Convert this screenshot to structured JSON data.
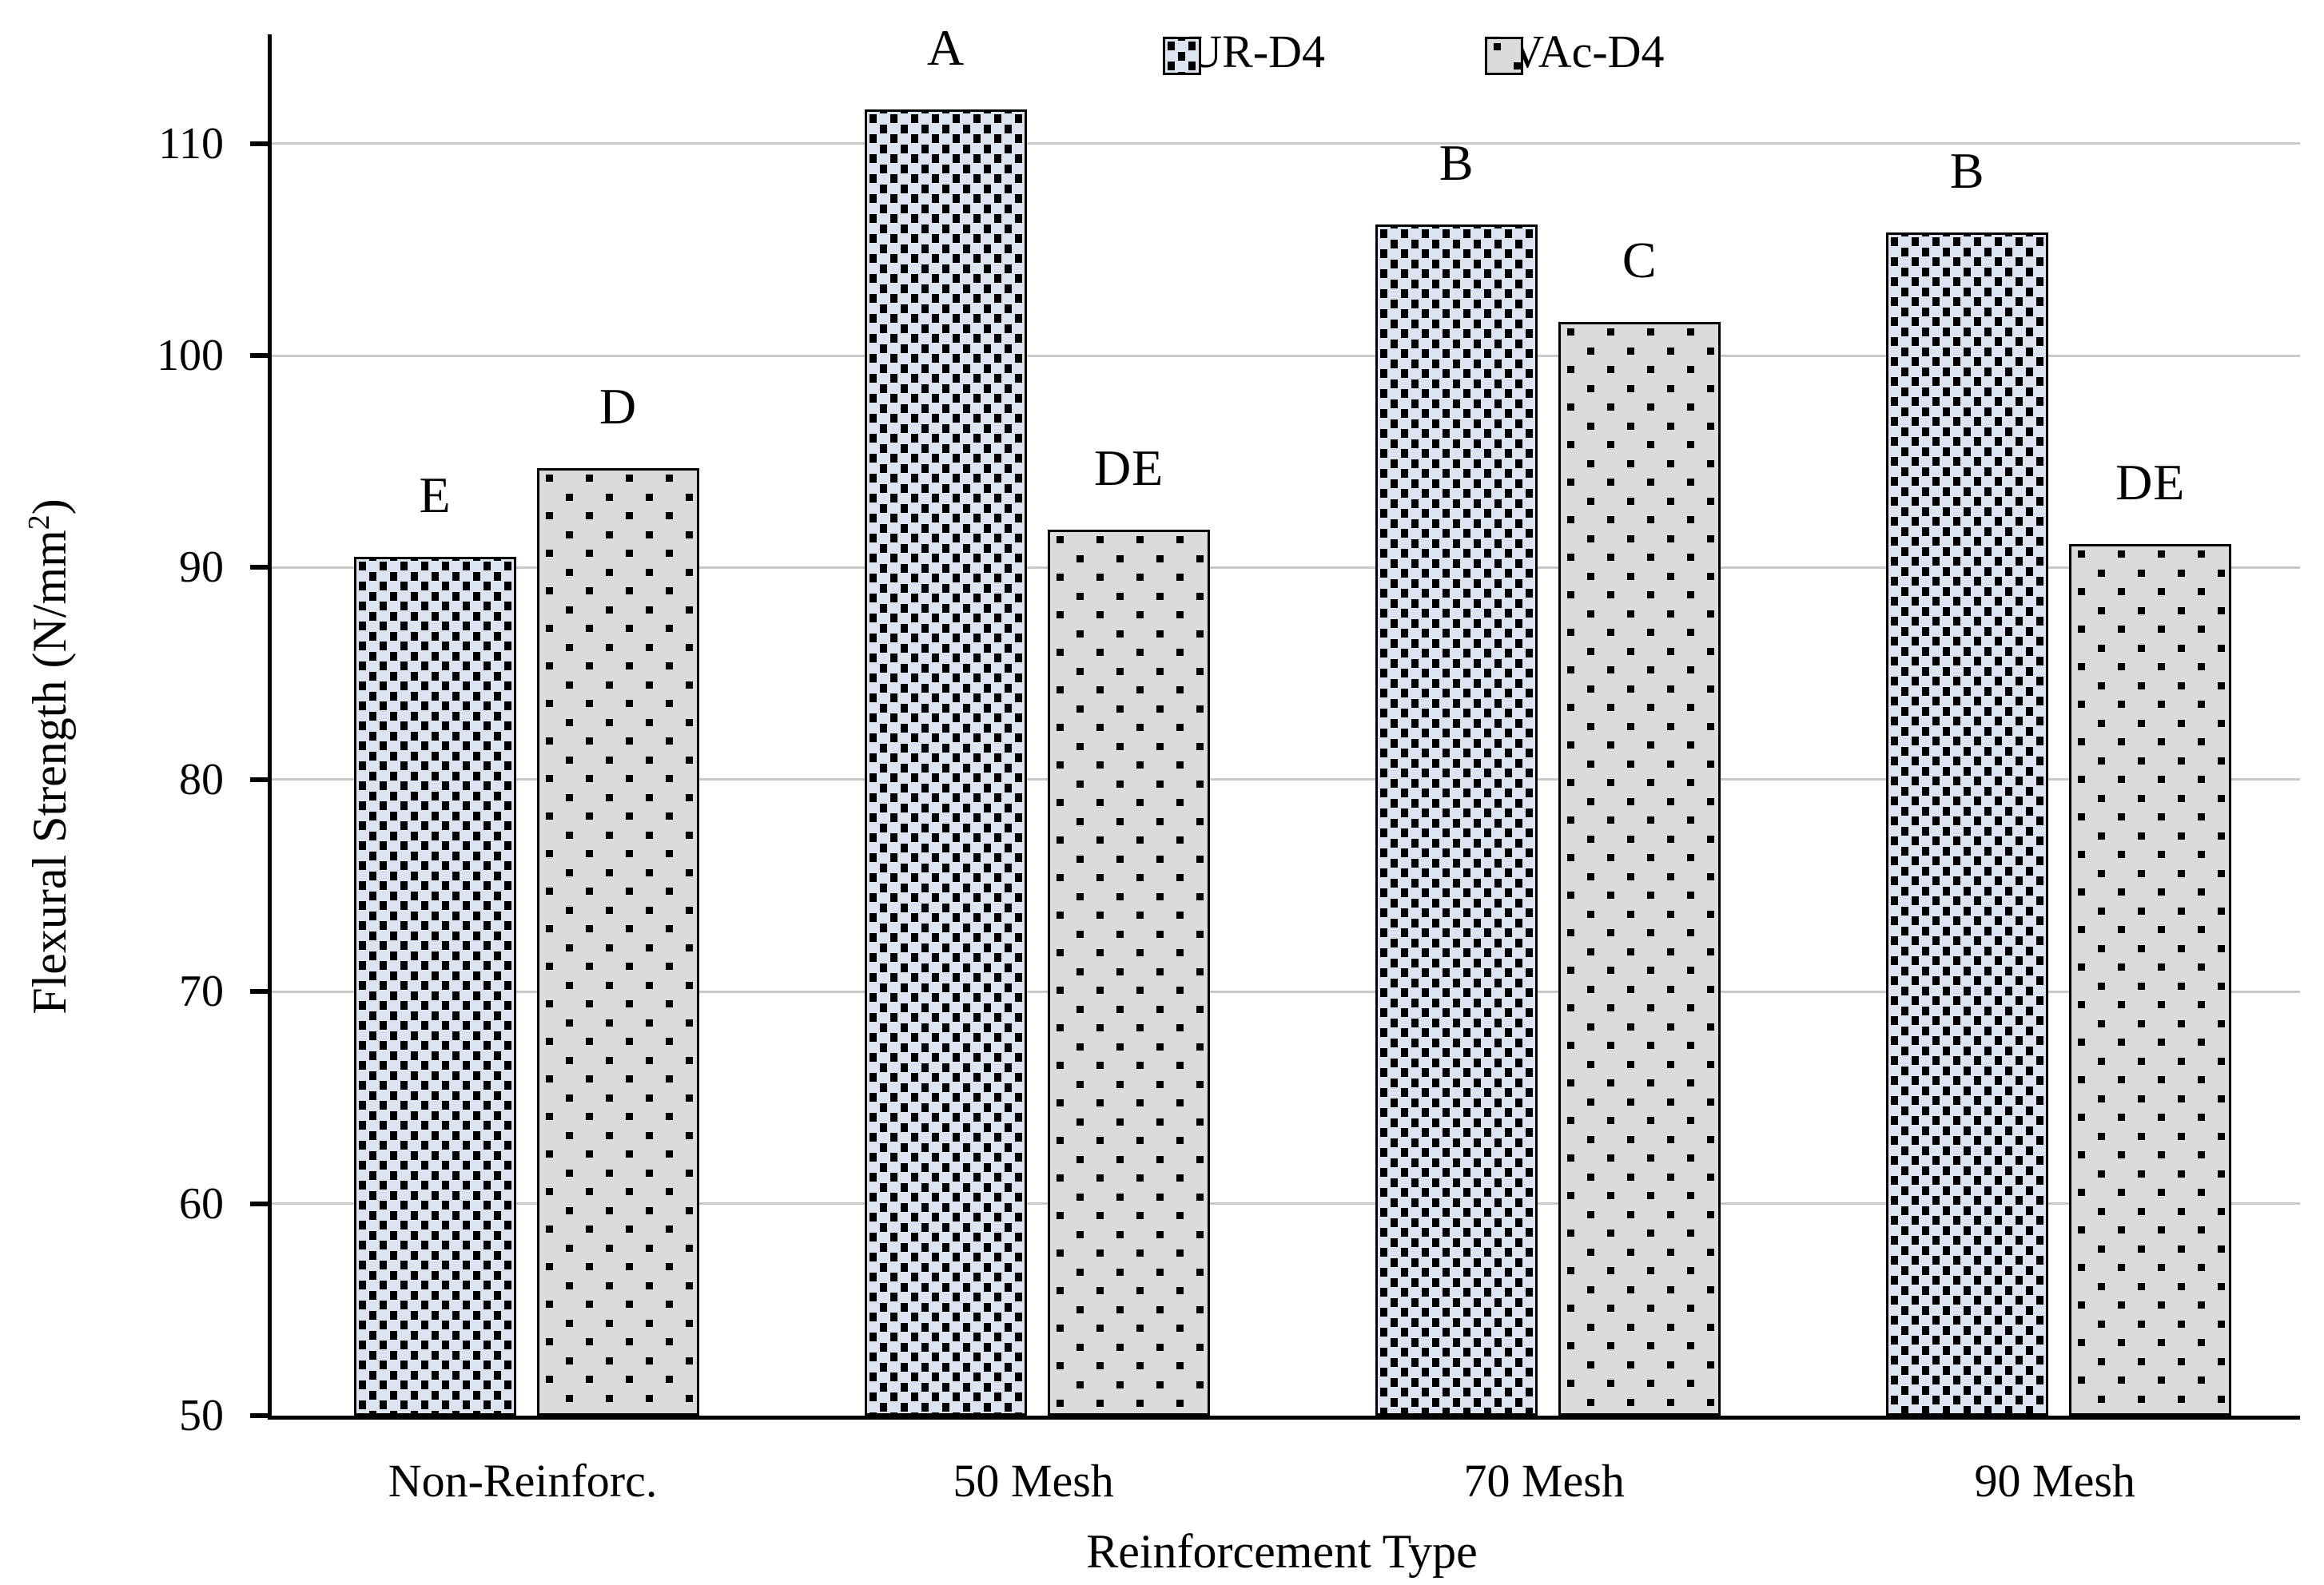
{
  "figure": {
    "y_axis_title_prefix": "Flexural Strength (N/mm",
    "y_axis_title_sup": "2",
    "y_axis_title_suffix": ")",
    "x_axis_title": "Reinforcement Type"
  },
  "chart_data": {
    "type": "bar",
    "title": "",
    "xlabel": "Reinforcement Type",
    "ylabel": "Flexural Strength (N/mm²)",
    "categories": [
      "Non-Reinforc.",
      "50 Mesh",
      "70 Mesh",
      "90 Mesh"
    ],
    "series": [
      {
        "name": "PUR-D4",
        "values": [
          90.5,
          111.6,
          106.2,
          105.8
        ],
        "significance_letters": [
          "E",
          "A",
          "B",
          "B"
        ],
        "fill": "#dce4f2",
        "pattern": "dense-square-dots"
      },
      {
        "name": "PVAc-D4",
        "values": [
          94.7,
          91.8,
          101.6,
          91.1
        ],
        "significance_letters": [
          "D",
          "DE",
          "C",
          "DE"
        ],
        "fill": "#dbdbdb",
        "pattern": "sparse-square-dots"
      }
    ],
    "yticks": [
      50,
      60,
      70,
      80,
      90,
      100,
      110
    ],
    "ylim": [
      50,
      115
    ],
    "grid": true,
    "legend_position": "top-center"
  },
  "colors": {
    "gridline": "#c9c9c9",
    "axis": "#000000",
    "text": "#000000",
    "background": "#ffffff"
  }
}
